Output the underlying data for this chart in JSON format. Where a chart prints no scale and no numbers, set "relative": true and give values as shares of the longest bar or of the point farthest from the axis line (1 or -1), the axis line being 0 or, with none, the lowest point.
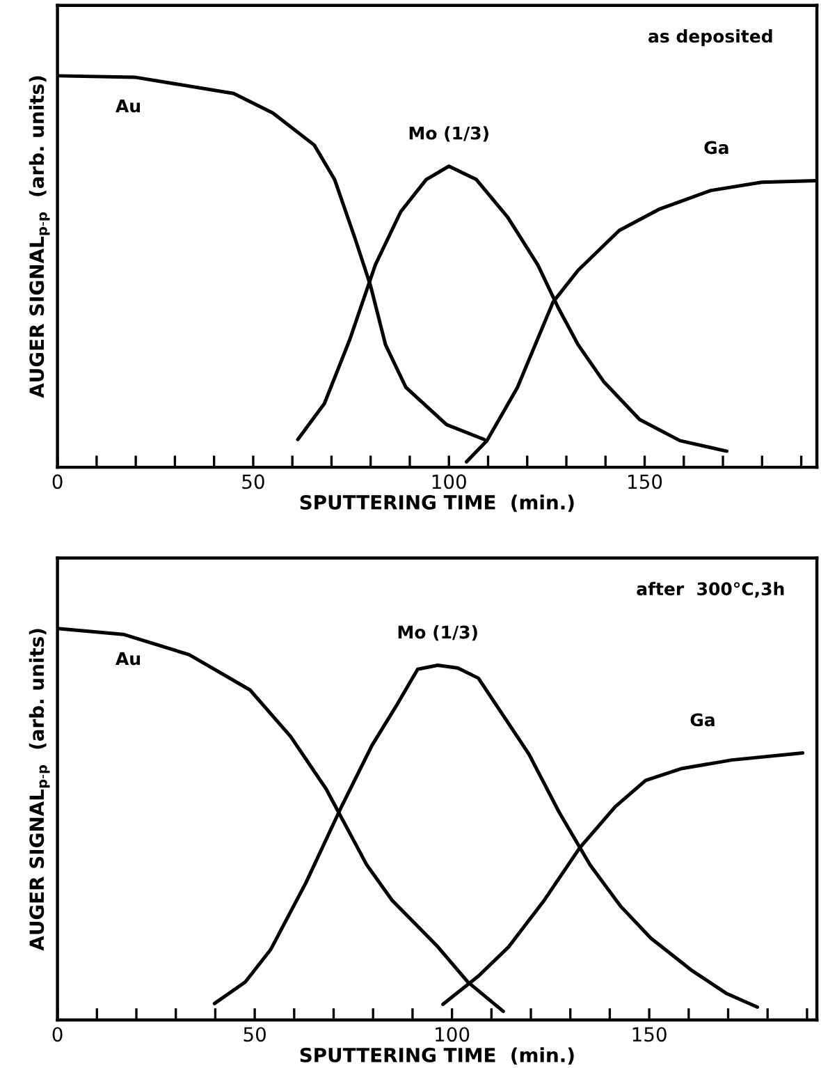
{
  "chart_data": [
    {
      "type": "line",
      "relative": true,
      "xlabel": "SPUTTERING TIME  (min.)",
      "ylabel": "AUGER SIGNAL$_{p-p}$  (arb. units)",
      "annotations": [
        "as deposited"
      ],
      "xlim": [
        0,
        194
      ],
      "xticks": [
        0,
        {
          "value": 10,
          "label": null
        },
        {
          "value": 20,
          "label": null
        },
        {
          "value": 30,
          "label": null
        },
        {
          "value": 40,
          "label": null
        },
        50,
        {
          "value": 60,
          "label": null
        },
        {
          "value": 70,
          "label": null
        },
        {
          "value": 80,
          "label": null
        },
        {
          "value": 90,
          "label": null
        },
        100,
        {
          "value": 110,
          "label": null
        },
        {
          "value": 120,
          "label": null
        },
        {
          "value": 130,
          "label": null
        },
        {
          "value": 140,
          "label": null
        },
        150,
        {
          "value": 160,
          "label": null
        },
        {
          "value": 170,
          "label": null
        },
        {
          "value": 180,
          "label": null
        },
        {
          "value": 190,
          "label": null
        }
      ],
      "grid": false,
      "legend": false,
      "marker": "none",
      "line_style": "solid",
      "series": [
        {
          "name": "Au",
          "color": "#000000",
          "x": [
            0,
            20,
            45,
            55,
            65.6,
            70.8,
            76,
            80,
            83.8,
            89,
            99.4,
            109
          ],
          "values": [
            1.0,
            0.996,
            0.955,
            0.905,
            0.823,
            0.735,
            0.585,
            0.463,
            0.313,
            0.204,
            0.109,
            0.071
          ]
        },
        {
          "name": "Mo (1/3)",
          "color": "#000000",
          "x": [
            61.4,
            68.2,
            74.7,
            81.2,
            87.7,
            94.2,
            100,
            107,
            115,
            122.7,
            127.9,
            133,
            139.6,
            148.7,
            159,
            171
          ],
          "values": [
            0.071,
            0.163,
            0.327,
            0.517,
            0.653,
            0.735,
            0.769,
            0.735,
            0.639,
            0.517,
            0.408,
            0.313,
            0.218,
            0.122,
            0.068,
            0.041
          ]
        },
        {
          "name": "Ga",
          "color": "#000000",
          "x": [
            104.5,
            109.7,
            117.5,
            126.6,
            133,
            143.5,
            153.9,
            166.9,
            179.9,
            193.9
          ],
          "values": [
            0.014,
            0.068,
            0.204,
            0.422,
            0.503,
            0.605,
            0.66,
            0.707,
            0.728,
            0.732
          ]
        }
      ]
    },
    {
      "type": "line",
      "relative": true,
      "xlabel": "SPUTTERING TIME  (min.)",
      "ylabel": "AUGER SIGNAL$_{p-p}$  (arb. units)",
      "annotations": [
        "after  300°C,3h"
      ],
      "xlim": [
        0,
        192.5
      ],
      "xticks": [
        0,
        {
          "value": 10,
          "label": null
        },
        {
          "value": 20,
          "label": null
        },
        {
          "value": 30,
          "label": null
        },
        {
          "value": 40,
          "label": null
        },
        50,
        {
          "value": 60,
          "label": null
        },
        {
          "value": 70,
          "label": null
        },
        {
          "value": 80,
          "label": null
        },
        {
          "value": 90,
          "label": null
        },
        100,
        {
          "value": 110,
          "label": null
        },
        {
          "value": 120,
          "label": null
        },
        {
          "value": 130,
          "label": null
        },
        {
          "value": 140,
          "label": null
        },
        150,
        {
          "value": 160,
          "label": null
        },
        {
          "value": 170,
          "label": null
        },
        {
          "value": 180,
          "label": null
        },
        {
          "value": 190,
          "label": null
        }
      ],
      "grid": false,
      "legend": false,
      "marker": "none",
      "line_style": "solid",
      "series": [
        {
          "name": "Au",
          "color": "#000000",
          "x": [
            0,
            16.7,
            33.4,
            48.8,
            59.1,
            68.1,
            78.4,
            84.8,
            96.4,
            104,
            113
          ],
          "values": [
            1.0,
            0.985,
            0.933,
            0.843,
            0.724,
            0.59,
            0.396,
            0.306,
            0.187,
            0.097,
            0.022
          ]
        },
        {
          "name": "Mo (1/3)",
          "color": "#000000",
          "x": [
            39.8,
            47.6,
            54,
            63,
            72,
            79.7,
            86.1,
            91.3,
            96.4,
            101.5,
            106.7,
            113.1,
            119.5,
            127.2,
            135,
            142.7,
            150.4,
            160.7,
            169.7,
            177.4
          ],
          "values": [
            0.042,
            0.097,
            0.179,
            0.351,
            0.545,
            0.701,
            0.806,
            0.896,
            0.906,
            0.899,
            0.873,
            0.776,
            0.679,
            0.53,
            0.396,
            0.291,
            0.209,
            0.127,
            0.067,
            0.033
          ]
        },
        {
          "name": "Ga",
          "color": "#000000",
          "x": [
            97.7,
            106.7,
            114.4,
            123.4,
            132.4,
            141.4,
            149.1,
            158.1,
            170.9,
            188.9
          ],
          "values": [
            0.04,
            0.112,
            0.187,
            0.306,
            0.44,
            0.545,
            0.612,
            0.642,
            0.664,
            0.682
          ]
        }
      ]
    }
  ]
}
